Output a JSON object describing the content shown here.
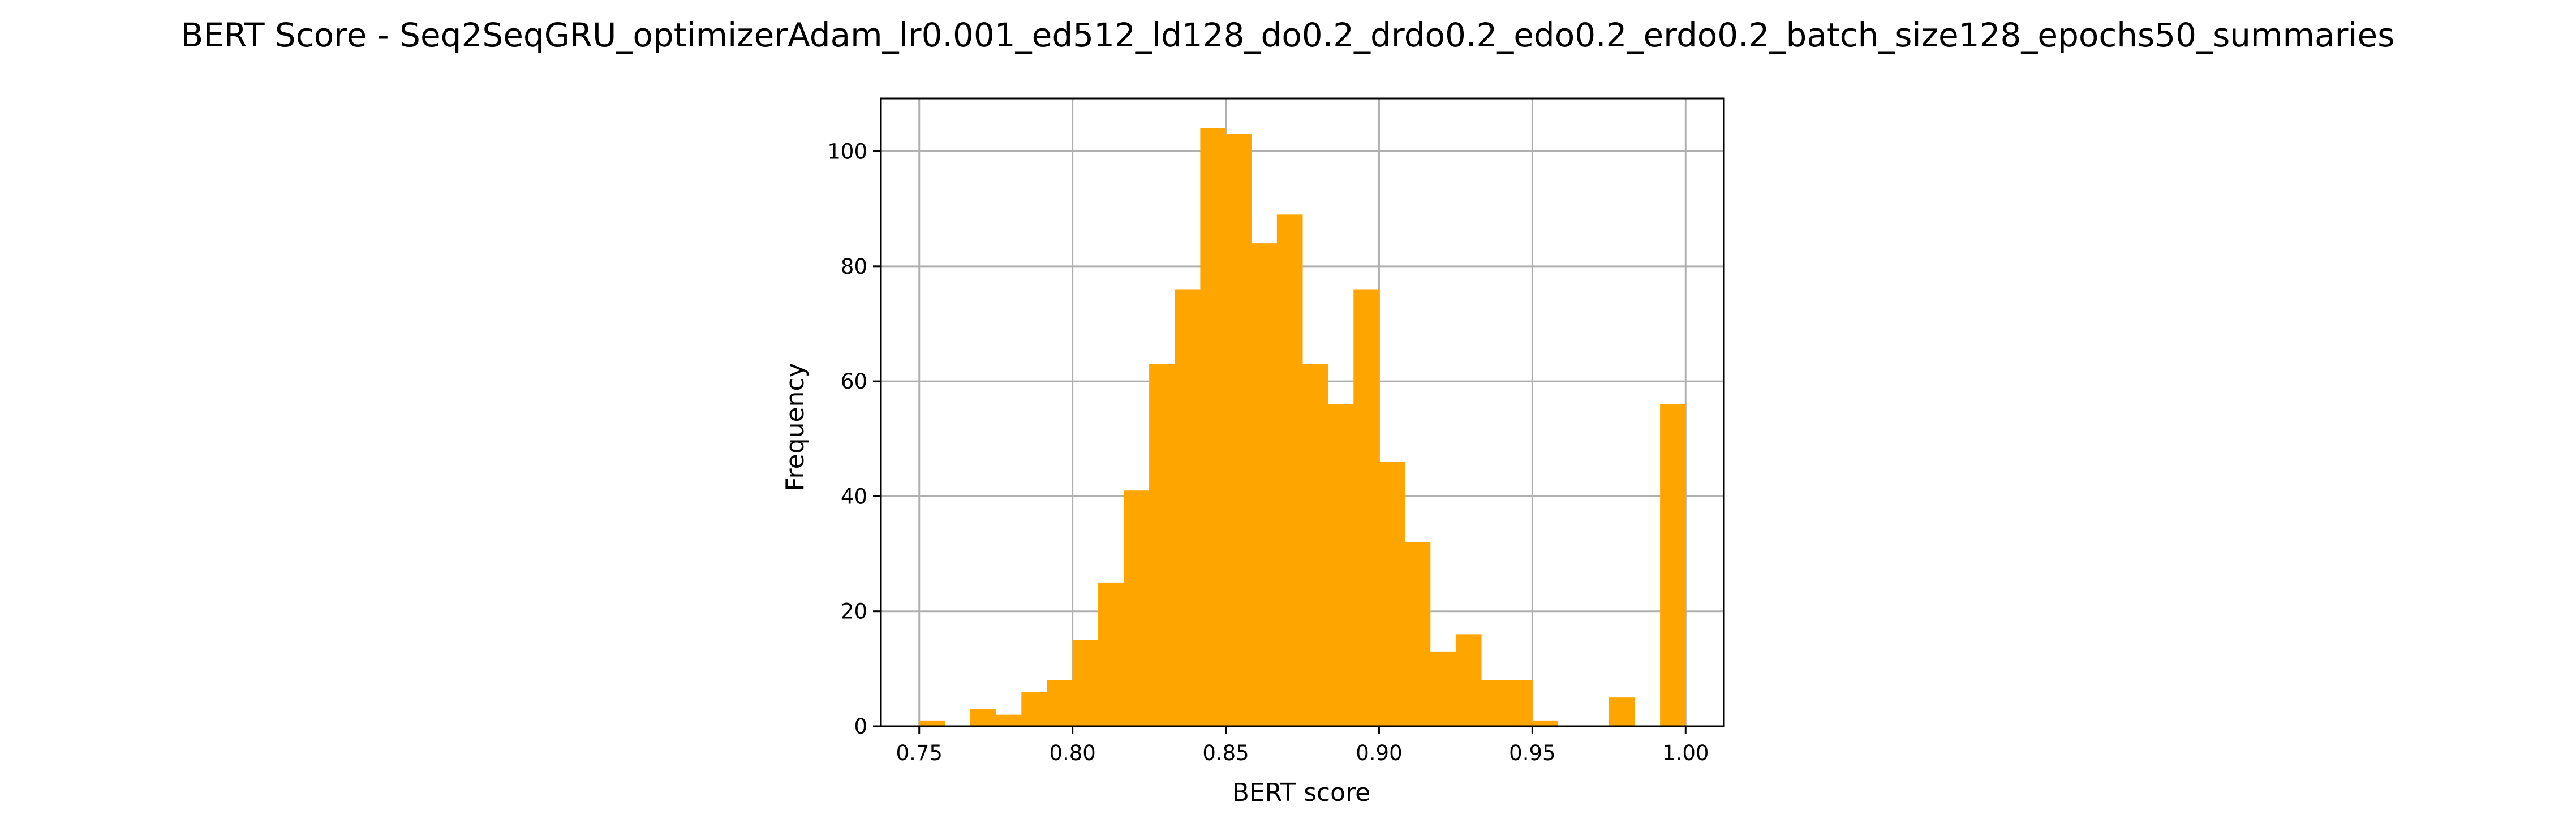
{
  "chart_data": {
    "type": "bar",
    "title": "BERT Score - Seq2SeqGRU_optimizerAdam_lr0.001_ed512_ld128_do0.2_drdo0.2_edo0.2_erdo0.2_batch_size128_epochs50_summaries",
    "xlabel": "BERT score",
    "ylabel": "Frequency",
    "xlim": [
      0.7375,
      1.0125
    ],
    "ylim": [
      0,
      109.2
    ],
    "grid": true,
    "bar_color": "#ffa500",
    "x_ticks": [
      "0.75",
      "0.80",
      "0.85",
      "0.90",
      "0.95",
      "1.00"
    ],
    "y_ticks": [
      "0",
      "20",
      "40",
      "60",
      "80",
      "100"
    ],
    "bin_edges": [
      0.75,
      0.758333,
      0.766667,
      0.775,
      0.783333,
      0.791667,
      0.8,
      0.808333,
      0.816667,
      0.825,
      0.833333,
      0.841667,
      0.85,
      0.858333,
      0.866667,
      0.875,
      0.883333,
      0.891667,
      0.9,
      0.908333,
      0.916667,
      0.925,
      0.933333,
      0.941667,
      0.95,
      0.958333,
      0.966667,
      0.975,
      0.983333,
      0.991667,
      1.0
    ],
    "values": [
      1,
      0,
      3,
      2,
      6,
      8,
      15,
      25,
      41,
      63,
      76,
      104,
      103,
      84,
      89,
      63,
      56,
      76,
      46,
      32,
      13,
      16,
      8,
      8,
      1,
      0,
      0,
      5,
      0,
      56
    ]
  }
}
